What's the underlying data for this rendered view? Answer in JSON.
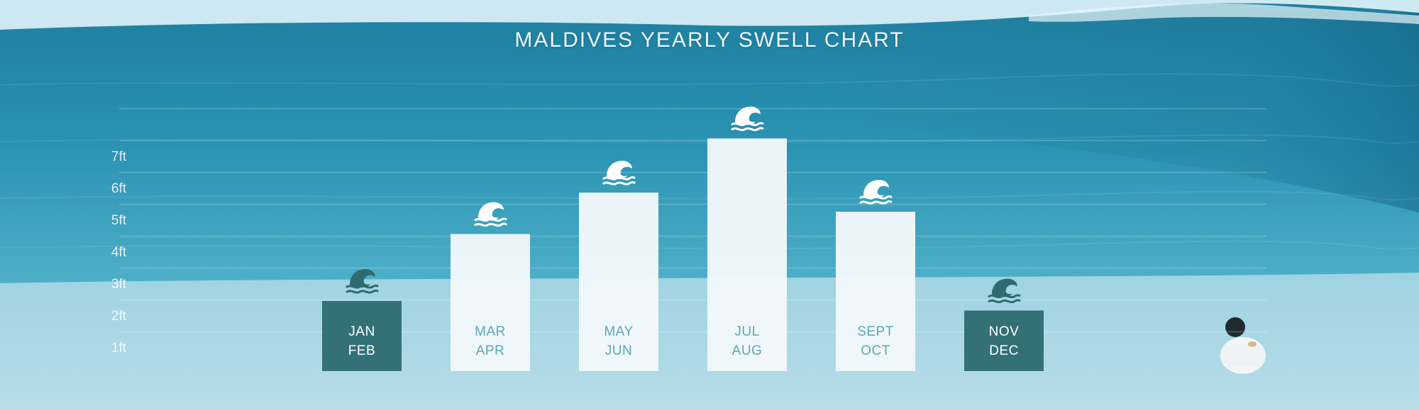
{
  "chart_data": {
    "type": "bar",
    "title": "MALDIVES YEARLY SWELL CHART",
    "categories": [
      [
        "JAN",
        "FEB"
      ],
      [
        "MAR",
        "APR"
      ],
      [
        "MAY",
        "JUN"
      ],
      [
        "JUL",
        "AUG"
      ],
      [
        "SEPT",
        "OCT"
      ],
      [
        "NOV",
        "DEC"
      ]
    ],
    "values": [
      2.2,
      4.3,
      5.6,
      7.3,
      5.0,
      1.9
    ],
    "y_ticks": [
      "1ft",
      "2ft",
      "3ft",
      "4ft",
      "5ft",
      "6ft",
      "7ft"
    ],
    "ylim": [
      0,
      7
    ],
    "grid": true,
    "colors": {
      "light_bar": "#f2f8fb",
      "dark_bar": "#2d6b70",
      "light_bar_text": "#5aa7b6",
      "dark_bar_text": "#ffffff",
      "light_icon": "#ffffff",
      "dark_icon": "#2d6b70"
    },
    "bar_styles": [
      "dark",
      "light",
      "light",
      "light",
      "light",
      "dark"
    ],
    "icon": "wave-icon"
  }
}
